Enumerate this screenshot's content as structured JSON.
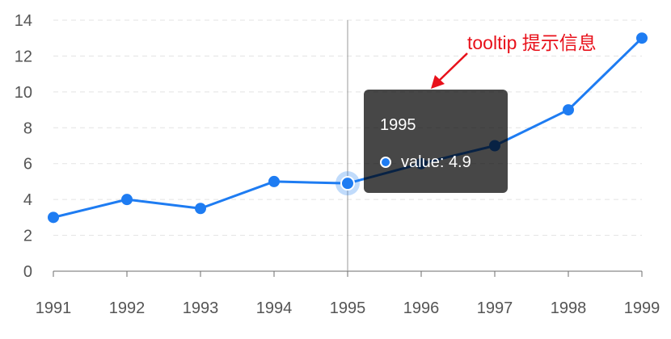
{
  "chart_data": {
    "type": "line",
    "x": [
      "1991",
      "1992",
      "1993",
      "1994",
      "1995",
      "1996",
      "1997",
      "1998",
      "1999"
    ],
    "series": [
      {
        "values": [
          3,
          4,
          3.5,
          5,
          4.9,
          6,
          7,
          9,
          13
        ]
      }
    ],
    "ylim": [
      0,
      14
    ],
    "y_ticks": [
      "0",
      "2",
      "4",
      "6",
      "8",
      "10",
      "12",
      "14"
    ],
    "grid": "horizontal dashed",
    "line_color": "#1e7cf2",
    "highlight_index": 4
  },
  "tooltip": {
    "title": "1995",
    "series_label": "value",
    "separator": ": ",
    "value": "4.9",
    "marker_color": "#1e7cf2"
  },
  "annotation": {
    "text": "tooltip 提示信息",
    "color": "#e8101a"
  }
}
